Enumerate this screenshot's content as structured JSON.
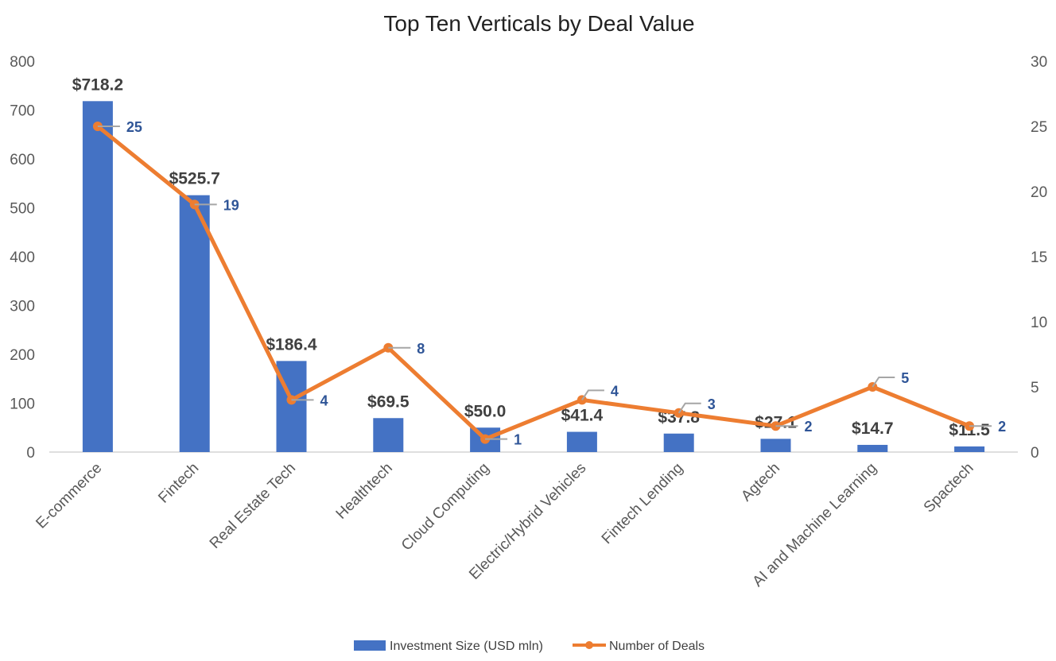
{
  "chart_data": {
    "type": "bar+line",
    "title": "Top Ten Verticals by Deal Value",
    "categories": [
      "E-commerce",
      "Fintech",
      "Real Estate Tech",
      "Healthtech",
      "Cloud Computing",
      "Electric/Hybrid Vehicles",
      "Fintech Lending",
      "Agtech",
      "AI and Machine Learning",
      "Spactech"
    ],
    "series": [
      {
        "name": "Investment Size (USD mln)",
        "type": "bar",
        "axis": "left",
        "color": "#4472c4",
        "values": [
          718.2,
          525.7,
          186.4,
          69.5,
          50.0,
          41.4,
          37.8,
          27.1,
          14.7,
          11.5
        ],
        "labels": [
          "$718.2",
          "$525.7",
          "$186.4",
          "$69.5",
          "$50.0",
          "$41.4",
          "$37.8",
          "$27.1",
          "$14.7",
          "$11.5"
        ]
      },
      {
        "name": "Number of Deals",
        "type": "line",
        "axis": "right",
        "color": "#ed7d31",
        "values": [
          25,
          19,
          4,
          8,
          1,
          4,
          3,
          2,
          5,
          2
        ],
        "labels": [
          "25",
          "19",
          "4",
          "8",
          "1",
          "4",
          "3",
          "2",
          "5",
          "2"
        ]
      }
    ],
    "y_left": {
      "min": 0,
      "max": 800,
      "ticks": [
        "0",
        "100",
        "200",
        "300",
        "400",
        "500",
        "600",
        "700",
        "800"
      ]
    },
    "y_right": {
      "min": 0,
      "max": 30,
      "ticks": [
        "0",
        "5",
        "10",
        "15",
        "20",
        "25",
        "30"
      ]
    },
    "grid": false,
    "legend": "bottom"
  }
}
